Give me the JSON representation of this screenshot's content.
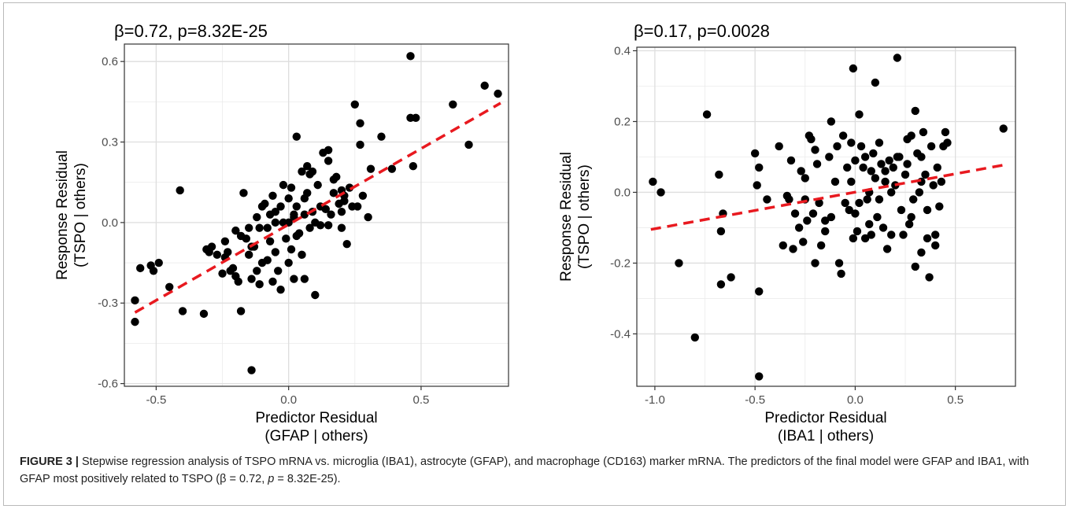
{
  "chart_data": [
    {
      "type": "scatter",
      "title": "β=0.72, p=8.32E-25",
      "xlabel": [
        "Predictor Residual",
        "(GFAP | others)"
      ],
      "ylabel": [
        "Response Residual",
        "(TSPO | others)"
      ],
      "xlim": [
        -0.62,
        0.83
      ],
      "ylim": [
        -0.61,
        0.665
      ],
      "xticks": [
        -0.5,
        0.0,
        0.5
      ],
      "xtick_labels": [
        "-0.5",
        "0.0",
        "0.5"
      ],
      "yticks": [
        -0.6,
        -0.3,
        0.0,
        0.3,
        0.6
      ],
      "ytick_labels": [
        "-0.6",
        "-0.3",
        "0.0",
        "0.3",
        "0.6"
      ],
      "grid": true,
      "fit_line": {
        "x": [
          -0.58,
          0.8
        ],
        "y": [
          -0.335,
          0.445
        ],
        "color": "#e8191f",
        "style": "dashed"
      },
      "points": [
        [
          -0.58,
          -0.37
        ],
        [
          -0.58,
          -0.29
        ],
        [
          -0.56,
          -0.17
        ],
        [
          -0.52,
          -0.16
        ],
        [
          -0.51,
          -0.18
        ],
        [
          -0.49,
          -0.15
        ],
        [
          -0.45,
          -0.24
        ],
        [
          -0.41,
          0.12
        ],
        [
          -0.4,
          -0.33
        ],
        [
          -0.32,
          -0.34
        ],
        [
          -0.31,
          -0.1
        ],
        [
          -0.3,
          -0.11
        ],
        [
          -0.29,
          -0.09
        ],
        [
          -0.27,
          -0.12
        ],
        [
          -0.25,
          -0.19
        ],
        [
          -0.24,
          -0.07
        ],
        [
          -0.23,
          -0.11
        ],
        [
          -0.22,
          -0.18
        ],
        [
          -0.21,
          -0.17
        ],
        [
          -0.2,
          -0.2
        ],
        [
          -0.19,
          -0.22
        ],
        [
          -0.2,
          -0.03
        ],
        [
          -0.18,
          -0.05
        ],
        [
          -0.18,
          -0.33
        ],
        [
          -0.17,
          0.11
        ],
        [
          -0.16,
          -0.06
        ],
        [
          -0.15,
          -0.12
        ],
        [
          -0.14,
          -0.21
        ],
        [
          -0.14,
          -0.55
        ],
        [
          -0.13,
          -0.09
        ],
        [
          -0.12,
          -0.18
        ],
        [
          -0.11,
          -0.02
        ],
        [
          -0.11,
          -0.23
        ],
        [
          -0.1,
          0.06
        ],
        [
          -0.09,
          0.07
        ],
        [
          -0.08,
          -0.02
        ],
        [
          -0.08,
          -0.14
        ],
        [
          -0.07,
          -0.07
        ],
        [
          -0.06,
          -0.22
        ],
        [
          -0.05,
          0.04
        ],
        [
          -0.05,
          -0.11
        ],
        [
          -0.04,
          -0.18
        ],
        [
          -0.03,
          0.06
        ],
        [
          -0.03,
          -0.25
        ],
        [
          -0.02,
          0.0
        ],
        [
          -0.01,
          -0.06
        ],
        [
          0.0,
          0.09
        ],
        [
          0.0,
          -0.15
        ],
        [
          0.01,
          0.13
        ],
        [
          0.01,
          -0.1
        ],
        [
          0.02,
          0.02
        ],
        [
          0.02,
          -0.21
        ],
        [
          0.03,
          0.06
        ],
        [
          0.03,
          0.32
        ],
        [
          0.04,
          -0.04
        ],
        [
          0.05,
          0.19
        ],
        [
          0.05,
          -0.12
        ],
        [
          0.06,
          0.03
        ],
        [
          0.06,
          -0.21
        ],
        [
          0.07,
          0.11
        ],
        [
          0.07,
          0.21
        ],
        [
          0.08,
          -0.02
        ],
        [
          0.08,
          0.18
        ],
        [
          0.09,
          0.04
        ],
        [
          0.1,
          -0.27
        ],
        [
          0.1,
          0.0
        ],
        [
          0.11,
          0.14
        ],
        [
          0.12,
          -0.01
        ],
        [
          0.13,
          0.26
        ],
        [
          0.14,
          0.05
        ],
        [
          0.15,
          0.23
        ],
        [
          0.15,
          0.27
        ],
        [
          0.16,
          0.03
        ],
        [
          0.17,
          0.16
        ],
        [
          0.18,
          0.17
        ],
        [
          0.19,
          0.07
        ],
        [
          0.2,
          0.12
        ],
        [
          0.2,
          -0.02
        ],
        [
          0.21,
          0.08
        ],
        [
          0.22,
          -0.08
        ],
        [
          0.23,
          0.13
        ],
        [
          0.24,
          0.06
        ],
        [
          0.25,
          0.44
        ],
        [
          0.26,
          0.06
        ],
        [
          0.27,
          0.37
        ],
        [
          0.27,
          0.29
        ],
        [
          0.28,
          0.1
        ],
        [
          0.3,
          0.02
        ],
        [
          0.31,
          0.2
        ],
        [
          0.35,
          0.32
        ],
        [
          0.39,
          0.2
        ],
        [
          0.46,
          0.39
        ],
        [
          0.46,
          0.62
        ],
        [
          0.47,
          0.21
        ],
        [
          0.48,
          0.39
        ],
        [
          0.62,
          0.44
        ],
        [
          0.68,
          0.29
        ],
        [
          0.74,
          0.51
        ],
        [
          0.79,
          0.48
        ],
        [
          -0.06,
          0.1
        ],
        [
          -0.05,
          0.0
        ],
        [
          0.03,
          -0.05
        ],
        [
          -0.12,
          0.02
        ],
        [
          -0.15,
          -0.02
        ],
        [
          0.12,
          0.06
        ],
        [
          -0.02,
          0.14
        ],
        [
          0.06,
          0.09
        ],
        [
          0.2,
          0.04
        ],
        [
          0.17,
          0.11
        ],
        [
          -0.1,
          -0.15
        ],
        [
          0.02,
          0.03
        ],
        [
          -0.24,
          -0.13
        ],
        [
          0.0,
          0.0
        ],
        [
          -0.07,
          0.03
        ],
        [
          0.15,
          -0.01
        ],
        [
          -0.14,
          -0.09
        ],
        [
          0.21,
          0.1
        ],
        [
          0.09,
          0.19
        ]
      ]
    },
    {
      "type": "scatter",
      "title": "β=0.17, p=0.0028",
      "xlabel": [
        "Predictor Residual",
        "(IBA1 | others)"
      ],
      "ylabel": [
        "Response Residual",
        "(TSPO | others)"
      ],
      "xlim": [
        -1.09,
        0.8
      ],
      "ylim": [
        -0.548,
        0.41
      ],
      "xticks": [
        -1.0,
        -0.5,
        0.0,
        0.5
      ],
      "xtick_labels": [
        "-1.0",
        "-0.5",
        "0.0",
        "0.5"
      ],
      "yticks": [
        -0.4,
        -0.2,
        0.0,
        0.2,
        0.4
      ],
      "ytick_labels": [
        "-0.4",
        "-0.2",
        "0.0",
        "0.2",
        "0.4"
      ],
      "grid": true,
      "fit_line": {
        "x": [
          -1.02,
          0.74
        ],
        "y": [
          -0.105,
          0.077
        ],
        "color": "#e8191f",
        "style": "dashed"
      },
      "points": [
        [
          -1.01,
          0.03
        ],
        [
          -0.97,
          0.0
        ],
        [
          -0.88,
          -0.2
        ],
        [
          -0.8,
          -0.41
        ],
        [
          -0.74,
          0.22
        ],
        [
          -0.68,
          0.05
        ],
        [
          -0.67,
          -0.11
        ],
        [
          -0.66,
          -0.06
        ],
        [
          -0.62,
          -0.24
        ],
        [
          -0.5,
          0.11
        ],
        [
          -0.49,
          0.02
        ],
        [
          -0.48,
          -0.28
        ],
        [
          -0.48,
          -0.52
        ],
        [
          -0.48,
          0.07
        ],
        [
          -0.44,
          -0.02
        ],
        [
          -0.38,
          0.13
        ],
        [
          -0.36,
          -0.15
        ],
        [
          -0.34,
          -0.01
        ],
        [
          -0.33,
          -0.02
        ],
        [
          -0.32,
          0.09
        ],
        [
          -0.31,
          -0.16
        ],
        [
          -0.3,
          -0.06
        ],
        [
          -0.28,
          -0.1
        ],
        [
          -0.27,
          0.06
        ],
        [
          -0.26,
          -0.14
        ],
        [
          -0.25,
          0.04
        ],
        [
          -0.24,
          -0.08
        ],
        [
          -0.23,
          0.16
        ],
        [
          -0.22,
          0.15
        ],
        [
          -0.21,
          -0.06
        ],
        [
          -0.2,
          -0.2
        ],
        [
          -0.2,
          0.12
        ],
        [
          -0.19,
          0.08
        ],
        [
          -0.18,
          -0.03
        ],
        [
          -0.17,
          -0.15
        ],
        [
          -0.15,
          -0.11
        ],
        [
          -0.13,
          0.1
        ],
        [
          -0.12,
          0.2
        ],
        [
          -0.12,
          -0.07
        ],
        [
          -0.1,
          0.03
        ],
        [
          -0.09,
          0.13
        ],
        [
          -0.08,
          -0.2
        ],
        [
          -0.07,
          -0.23
        ],
        [
          -0.06,
          0.16
        ],
        [
          -0.05,
          -0.03
        ],
        [
          -0.04,
          0.07
        ],
        [
          -0.03,
          -0.05
        ],
        [
          -0.02,
          0.14
        ],
        [
          -0.01,
          -0.13
        ],
        [
          -0.01,
          0.35
        ],
        [
          0.0,
          0.09
        ],
        [
          0.01,
          -0.11
        ],
        [
          0.02,
          0.22
        ],
        [
          0.02,
          -0.03
        ],
        [
          0.03,
          0.13
        ],
        [
          0.04,
          0.07
        ],
        [
          0.05,
          -0.13
        ],
        [
          0.06,
          -0.02
        ],
        [
          0.07,
          0.0
        ],
        [
          0.08,
          -0.12
        ],
        [
          0.09,
          0.11
        ],
        [
          0.1,
          0.04
        ],
        [
          0.1,
          0.31
        ],
        [
          0.11,
          -0.07
        ],
        [
          0.12,
          0.14
        ],
        [
          0.13,
          0.08
        ],
        [
          0.14,
          -0.1
        ],
        [
          0.15,
          0.03
        ],
        [
          0.16,
          -0.16
        ],
        [
          0.17,
          0.09
        ],
        [
          0.18,
          -0.12
        ],
        [
          0.19,
          0.07
        ],
        [
          0.2,
          0.02
        ],
        [
          0.21,
          0.38
        ],
        [
          0.22,
          0.1
        ],
        [
          0.23,
          -0.05
        ],
        [
          0.24,
          -0.12
        ],
        [
          0.25,
          0.05
        ],
        [
          0.26,
          0.15
        ],
        [
          0.27,
          -0.09
        ],
        [
          0.28,
          0.16
        ],
        [
          0.29,
          -0.02
        ],
        [
          0.3,
          0.23
        ],
        [
          0.3,
          -0.21
        ],
        [
          0.31,
          0.11
        ],
        [
          0.32,
          0.0
        ],
        [
          0.33,
          -0.17
        ],
        [
          0.34,
          0.17
        ],
        [
          0.35,
          0.05
        ],
        [
          0.36,
          -0.05
        ],
        [
          0.37,
          -0.24
        ],
        [
          0.38,
          0.13
        ],
        [
          0.39,
          0.02
        ],
        [
          0.4,
          -0.12
        ],
        [
          0.41,
          0.07
        ],
        [
          0.42,
          -0.04
        ],
        [
          0.43,
          0.03
        ],
        [
          0.44,
          0.13
        ],
        [
          0.45,
          0.17
        ],
        [
          0.46,
          0.14
        ],
        [
          0.74,
          0.18
        ],
        [
          -0.67,
          -0.26
        ],
        [
          0.08,
          0.06
        ],
        [
          0.12,
          -0.02
        ],
        [
          -0.02,
          0.03
        ],
        [
          0.05,
          0.1
        ],
        [
          0.15,
          0.06
        ],
        [
          0.33,
          0.03
        ],
        [
          0.28,
          -0.07
        ],
        [
          -0.25,
          -0.02
        ],
        [
          0.0,
          -0.06
        ],
        [
          0.18,
          0.0
        ],
        [
          0.26,
          0.08
        ],
        [
          0.4,
          -0.15
        ],
        [
          -0.15,
          -0.08
        ],
        [
          0.07,
          -0.09
        ],
        [
          0.33,
          0.1
        ],
        [
          0.36,
          -0.13
        ],
        [
          0.21,
          0.1
        ]
      ]
    }
  ],
  "caption": {
    "label": "FIGURE 3 |",
    "text": " Stepwise regression analysis of TSPO mRNA vs. microglia (IBA1), astrocyte (GFAP), and macrophage (CD163) marker mRNA. The predictors of the final model were GFAP and IBA1, with GFAP most positively related to TSPO (β = 0.72, ",
    "p_letter": "p",
    "tail": " = 8.32E-25)."
  }
}
